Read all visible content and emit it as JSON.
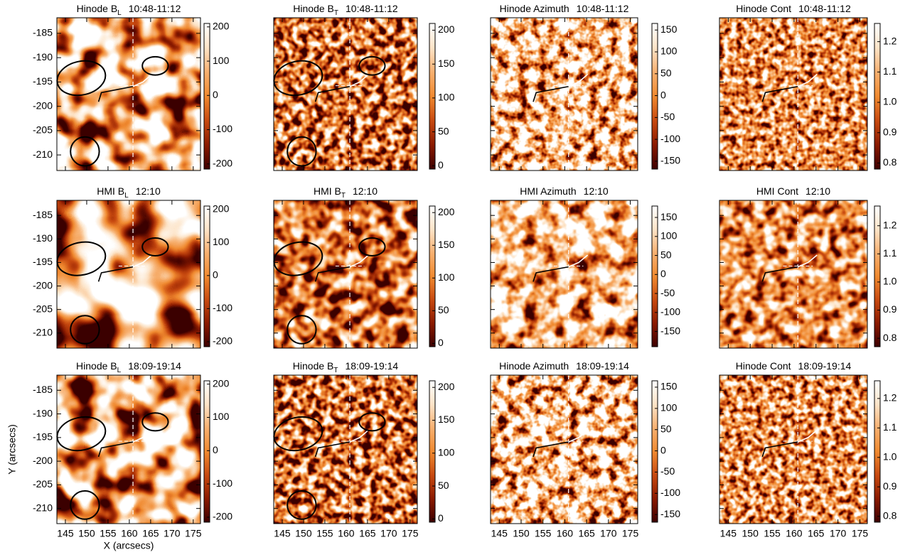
{
  "chart_data": [
    {
      "type": "heatmap",
      "title": "Hinode B",
      "title_sub": "L",
      "title_time": "10:48-11:12",
      "xlim": [
        143,
        176.7
      ],
      "ylim": [
        -213.2,
        -181.8
      ],
      "xticks": [
        145,
        150,
        155,
        160,
        165,
        170,
        175
      ],
      "yticks": [
        -185,
        -190,
        -195,
        -200,
        -205,
        -210
      ],
      "xtick_labels": false,
      "ytick_labels": true,
      "clim": [
        -215,
        210
      ],
      "cticks": [
        -200,
        -100,
        0,
        100,
        200
      ],
      "colors": [
        "#3c0000",
        "#8b1a00",
        "#c84a10",
        "#f08a30",
        "#f7b070",
        "#fde4c8",
        "#ffffff"
      ]
    },
    {
      "type": "heatmap",
      "title": "Hinode B",
      "title_sub": "T",
      "title_time": "10:48-11:12",
      "xlim": [
        143,
        176.7
      ],
      "ylim": [
        -213.2,
        -181.8
      ],
      "xticks": [
        145,
        150,
        155,
        160,
        165,
        170,
        175
      ],
      "yticks": [
        -185,
        -190,
        -195,
        -200,
        -205,
        -210
      ],
      "xtick_labels": false,
      "ytick_labels": false,
      "clim": [
        -5,
        210
      ],
      "cticks": [
        0,
        50,
        100,
        150,
        200
      ],
      "colors": [
        "#3c0000",
        "#8b1a00",
        "#c84a10",
        "#f08a30",
        "#f7b070",
        "#fde4c8",
        "#ffffff"
      ]
    },
    {
      "type": "heatmap",
      "title": "Hinode Azimuth",
      "title_time": "10:48-11:12",
      "xlim": [
        143,
        176.7
      ],
      "ylim": [
        -213.2,
        -181.8
      ],
      "xticks": [
        145,
        150,
        155,
        160,
        165,
        170,
        175
      ],
      "yticks": [
        -185,
        -190,
        -195,
        -200,
        -205,
        -210
      ],
      "xtick_labels": false,
      "ytick_labels": false,
      "clim": [
        -168,
        165
      ],
      "cticks": [
        -150,
        -100,
        -50,
        0,
        50,
        100,
        150
      ],
      "colors": [
        "#3c0000",
        "#8b1a00",
        "#c84a10",
        "#f08a30",
        "#f7b070",
        "#fde4c8",
        "#ffffff"
      ]
    },
    {
      "type": "heatmap",
      "title": "Hinode Cont",
      "title_time": "10:48-11:12",
      "xlim": [
        143,
        176.7
      ],
      "ylim": [
        -213.2,
        -181.8
      ],
      "xticks": [
        145,
        150,
        155,
        160,
        165,
        170,
        175
      ],
      "yticks": [
        -185,
        -190,
        -195,
        -200,
        -205,
        -210
      ],
      "xtick_labels": false,
      "ytick_labels": false,
      "clim": [
        0.78,
        1.26
      ],
      "cticks": [
        0.8,
        0.9,
        {
          "value": 1.0,
          "label": "1.0"
        },
        1.1,
        1.2
      ],
      "colors": [
        "#3c0000",
        "#8b1a00",
        "#c84a10",
        "#f08a30",
        "#f7b070",
        "#fde4c8",
        "#ffffff"
      ]
    },
    {
      "type": "heatmap",
      "title": "HMI B",
      "title_sub": "L",
      "title_time": "12:10",
      "xlim": [
        143,
        176.7
      ],
      "ylim": [
        -213.2,
        -181.8
      ],
      "xticks": [
        145,
        150,
        155,
        160,
        165,
        170,
        175
      ],
      "yticks": [
        -185,
        -190,
        -195,
        -200,
        -205,
        -210
      ],
      "xtick_labels": false,
      "ytick_labels": true,
      "clim": [
        -215,
        210
      ],
      "cticks": [
        -200,
        -100,
        0,
        100,
        200
      ],
      "colors": [
        "#3c0000",
        "#8b1a00",
        "#c84a10",
        "#f08a30",
        "#f7b070",
        "#fde4c8",
        "#ffffff"
      ]
    },
    {
      "type": "heatmap",
      "title": "HMI B",
      "title_sub": "T",
      "title_time": "12:10",
      "xlim": [
        143,
        176.7
      ],
      "ylim": [
        -213.2,
        -181.8
      ],
      "xticks": [
        145,
        150,
        155,
        160,
        165,
        170,
        175
      ],
      "yticks": [
        -185,
        -190,
        -195,
        -200,
        -205,
        -210
      ],
      "xtick_labels": false,
      "ytick_labels": false,
      "clim": [
        -5,
        210
      ],
      "cticks": [
        0,
        50,
        100,
        150,
        200
      ],
      "colors": [
        "#3c0000",
        "#8b1a00",
        "#c84a10",
        "#f08a30",
        "#f7b070",
        "#fde4c8",
        "#ffffff"
      ]
    },
    {
      "type": "heatmap",
      "title": "HMI Azimuth",
      "title_time": "12:10",
      "xlim": [
        143,
        176.7
      ],
      "ylim": [
        -213.2,
        -181.8
      ],
      "xticks": [
        145,
        150,
        155,
        160,
        165,
        170,
        175
      ],
      "yticks": [
        -185,
        -190,
        -195,
        -200,
        -205,
        -210
      ],
      "xtick_labels": false,
      "ytick_labels": false,
      "clim": [
        -190,
        180
      ],
      "cticks": [
        -150,
        -100,
        -50,
        0,
        50,
        100,
        150
      ],
      "colors": [
        "#3c0000",
        "#8b1a00",
        "#c84a10",
        "#f08a30",
        "#f7b070",
        "#fde4c8",
        "#ffffff"
      ]
    },
    {
      "type": "heatmap",
      "title": "HMI Cont",
      "title_time": "12:10",
      "xlim": [
        143,
        176.7
      ],
      "ylim": [
        -213.2,
        -181.8
      ],
      "xticks": [
        145,
        150,
        155,
        160,
        165,
        170,
        175
      ],
      "yticks": [
        -185,
        -190,
        -195,
        -200,
        -205,
        -210
      ],
      "xtick_labels": false,
      "ytick_labels": false,
      "clim": [
        0.77,
        1.27
      ],
      "cticks": [
        0.8,
        0.9,
        {
          "value": 1.0,
          "label": "1.0"
        },
        1.1,
        1.2
      ],
      "colors": [
        "#3c0000",
        "#8b1a00",
        "#c84a10",
        "#f08a30",
        "#f7b070",
        "#fde4c8",
        "#ffffff"
      ]
    },
    {
      "type": "heatmap",
      "title": "Hinode B",
      "title_sub": "L",
      "title_time": "18:09-19:14",
      "xlabel": "X (arcsecs)",
      "ylabel": "Y (arcsecs)",
      "xlim": [
        143,
        176.7
      ],
      "ylim": [
        -213.2,
        -181.8
      ],
      "xticks": [
        145,
        150,
        155,
        160,
        165,
        170,
        175
      ],
      "yticks": [
        -185,
        -190,
        -195,
        -200,
        -205,
        -210
      ],
      "xtick_labels": true,
      "ytick_labels": true,
      "clim": [
        -215,
        210
      ],
      "cticks": [
        -200,
        -100,
        0,
        100,
        200
      ],
      "colors": [
        "#3c0000",
        "#8b1a00",
        "#c84a10",
        "#f08a30",
        "#f7b070",
        "#fde4c8",
        "#ffffff"
      ]
    },
    {
      "type": "heatmap",
      "title": "Hinode B",
      "title_sub": "T",
      "title_time": "18:09-19:14",
      "xlim": [
        143,
        176.7
      ],
      "ylim": [
        -213.2,
        -181.8
      ],
      "xticks": [
        145,
        150,
        155,
        160,
        165,
        170,
        175
      ],
      "yticks": [
        -185,
        -190,
        -195,
        -200,
        -205,
        -210
      ],
      "xtick_labels": true,
      "ytick_labels": false,
      "clim": [
        -5,
        210
      ],
      "cticks": [
        0,
        50,
        100,
        150,
        200
      ],
      "colors": [
        "#3c0000",
        "#8b1a00",
        "#c84a10",
        "#f08a30",
        "#f7b070",
        "#fde4c8",
        "#ffffff"
      ]
    },
    {
      "type": "heatmap",
      "title": "Hinode Azimuth",
      "title_time": "18:09-19:14",
      "xlim": [
        143,
        176.7
      ],
      "ylim": [
        -213.2,
        -181.8
      ],
      "xticks": [
        145,
        150,
        155,
        160,
        165,
        170,
        175
      ],
      "yticks": [
        -185,
        -190,
        -195,
        -200,
        -205,
        -210
      ],
      "xtick_labels": true,
      "ytick_labels": false,
      "clim": [
        -168,
        165
      ],
      "cticks": [
        -150,
        -100,
        -50,
        0,
        50,
        100,
        150
      ],
      "colors": [
        "#3c0000",
        "#8b1a00",
        "#c84a10",
        "#f08a30",
        "#f7b070",
        "#fde4c8",
        "#ffffff"
      ]
    },
    {
      "type": "heatmap",
      "title": "Hinode Cont",
      "title_time": "18:09-19:14",
      "xlim": [
        143,
        176.7
      ],
      "ylim": [
        -213.2,
        -181.8
      ],
      "xticks": [
        145,
        150,
        155,
        160,
        165,
        170,
        175
      ],
      "yticks": [
        -185,
        -190,
        -195,
        -200,
        -205,
        -210
      ],
      "xtick_labels": true,
      "ytick_labels": false,
      "clim": [
        0.78,
        1.26
      ],
      "cticks": [
        0.8,
        0.9,
        {
          "value": 1.0,
          "label": "1.0"
        },
        1.1,
        1.2
      ],
      "colors": [
        "#3c0000",
        "#8b1a00",
        "#c84a10",
        "#f08a30",
        "#f7b070",
        "#fde4c8",
        "#ffffff"
      ]
    }
  ]
}
